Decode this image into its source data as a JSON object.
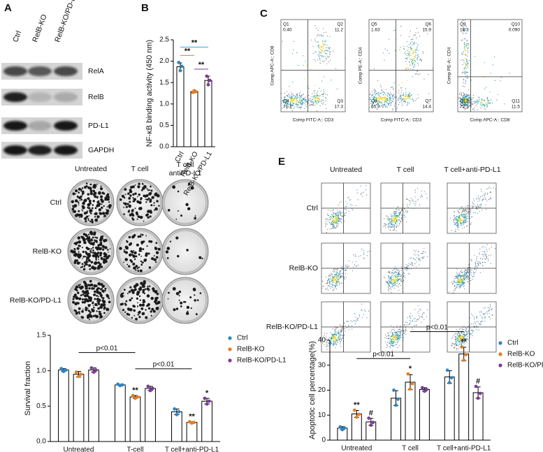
{
  "panels": {
    "A": {
      "label": "A",
      "columns": [
        "Ctrl",
        "RelB-KO",
        "RelB-KO/PD-L1"
      ],
      "rows": [
        "RelA",
        "RelB",
        "PD-L1",
        "GAPDH"
      ]
    },
    "C": {
      "label": "C",
      "plots": [
        {
          "y_label": "Comp APC-A:: CD8",
          "x_label": "Comp FITC-A:: CD3",
          "quadrants": [
            [
              "Q1",
              "0.40"
            ],
            [
              "Q2",
              "11.2"
            ],
            [
              "Q4",
              "71.1"
            ],
            [
              "Q3",
              "17.3"
            ]
          ]
        },
        {
          "y_label": "Comp PE-A:: CD4",
          "x_label": "Comp FITC-A:: CD3",
          "quadrants": [
            [
              "Q5",
              "1.63"
            ],
            [
              "Q6",
              "15.9"
            ],
            [
              "Q8",
              "65.9"
            ],
            [
              "Q7",
              "14.4"
            ]
          ]
        },
        {
          "y_label": "Comp PE-A:: CD4",
          "x_label": "Comp APC-A:: CD8",
          "quadrants": [
            [
              "Q9",
              "16.3"
            ],
            [
              "Q10",
              "0.090"
            ],
            [
              "Q12",
              "72.1"
            ],
            [
              "Q11",
              "11.5"
            ]
          ]
        }
      ]
    },
    "D": {
      "label": "D",
      "columns": [
        [
          "Untreated"
        ],
        [
          "T cell"
        ],
        [
          "T cell",
          "antiPD-L1"
        ]
      ],
      "rows": [
        "Ctrl",
        "RelB-KO",
        "RelB-KO/PD-L1"
      ]
    },
    "E": {
      "label": "E",
      "columns": [
        "Untreated",
        "T cell",
        "T cell+anti-PD-L1"
      ],
      "rows": [
        "Ctrl",
        "RelB-KO",
        "RelB-KO/PD-L1"
      ]
    }
  },
  "chart_data": [
    {
      "type": "bar",
      "panel_label": "B",
      "y_label": "NF-κB binding activity (450 nm)",
      "categories": [
        "Ctrl",
        "RelB-KO",
        "RelB-KO/PD-L1"
      ],
      "values": [
        1.87,
        1.29,
        1.55
      ],
      "errors": [
        0.09,
        0.03,
        0.1
      ],
      "points": [
        [
          1.97,
          1.78,
          1.88
        ],
        [
          1.27,
          1.31,
          1.29
        ],
        [
          1.65,
          1.45,
          1.55
        ]
      ],
      "point_colors": [
        "#2e86c1",
        "#e67e22",
        "#7d3c98"
      ],
      "bar_fill": "#ffffff",
      "ylim": [
        0,
        2.5
      ],
      "yticks": [
        {
          "value": 0,
          "label": "0.0"
        },
        0.5,
        {
          "value": 1,
          "label": "1.0"
        },
        1.5,
        {
          "value": 2,
          "label": "2.0"
        },
        2.5
      ],
      "x_labels_rotated": true,
      "brackets": [
        {
          "from": 1,
          "to": 2,
          "text": "**",
          "color": "#7d3c98"
        },
        {
          "from": 0,
          "to": 1,
          "text": "**",
          "color": "#e67e22"
        },
        {
          "from": 0,
          "to": 2,
          "text": "**",
          "color": "#29a9e0"
        }
      ]
    },
    {
      "type": "bar",
      "y_label": "Survival fraction",
      "categories": [
        "Untreated",
        "T-cell",
        "T cell+anti-PD-L1"
      ],
      "series": [
        {
          "name": "Ctrl",
          "color": "#2e86c1",
          "values": [
            1.01,
            0.8,
            0.42
          ],
          "errors": [
            0.02,
            0.01,
            0.04
          ],
          "points": [
            [
              1.03,
              0.99,
              1.01
            ],
            [
              0.81,
              0.79,
              0.8
            ],
            [
              0.46,
              0.38,
              0.42
            ]
          ]
        },
        {
          "name": "RelB-KO",
          "color": "#e67e22",
          "values": [
            0.95,
            0.63,
            0.27
          ],
          "errors": [
            0.04,
            0.02,
            0.01
          ],
          "points": [
            [
              0.98,
              0.92,
              0.95
            ],
            [
              0.65,
              0.61,
              0.63
            ],
            [
              0.28,
              0.26,
              0.27
            ]
          ]
        },
        {
          "name": "RelB-KO/PD-L1",
          "color": "#7d3c98",
          "values": [
            1.01,
            0.75,
            0.57
          ],
          "errors": [
            0.03,
            0.03,
            0.04
          ],
          "points": [
            [
              1.04,
              0.98,
              1.01
            ],
            [
              0.78,
              0.72,
              0.75
            ],
            [
              0.61,
              0.53,
              0.57
            ]
          ]
        }
      ],
      "bar_fill": "#ffffff",
      "ylim": [
        0,
        1.5
      ],
      "yticks": [
        {
          "value": 0,
          "label": "0.0"
        },
        0.5,
        {
          "value": 1,
          "label": "1.0"
        },
        1.5
      ],
      "legend": "right",
      "annotations": [
        {
          "series": 1,
          "index": 1,
          "text": "**",
          "color": "#c0392b"
        },
        {
          "series": 1,
          "index": 2,
          "text": "**",
          "color": "#c0392b"
        },
        {
          "series": 2,
          "index": 2,
          "text": "*",
          "color": "#8e44ad"
        }
      ],
      "brackets": [
        {
          "from": 0,
          "to": 1,
          "text": "p<0.01",
          "color": "#000000"
        },
        {
          "from": 1,
          "to": 2,
          "text": "p<0.01",
          "color": "#000000"
        }
      ]
    },
    {
      "type": "bar",
      "y_label": "Apoptotic cell percentage(%)",
      "categories": [
        "Untreated",
        "T cell",
        "T cell+anti-PD-L1"
      ],
      "series": [
        {
          "name": "Ctrl",
          "color": "#2e86c1",
          "values": [
            4.8,
            16.8,
            25.3
          ],
          "errors": [
            0.6,
            3,
            2.5
          ],
          "points": [
            [
              5.3,
              4.2,
              4.9
            ],
            [
              20,
              14,
              16.4
            ],
            [
              28,
              23,
              25
            ]
          ]
        },
        {
          "name": "RelB-KO",
          "color": "#e67e22",
          "values": [
            10.5,
            23.2,
            34.5
          ],
          "errors": [
            1.4,
            3,
            2.7
          ],
          "points": [
            [
              12,
              9.2,
              10.3
            ],
            [
              26.5,
              20.5,
              22.6
            ],
            [
              37.3,
              32,
              34.2
            ]
          ]
        },
        {
          "name": "RelB-KO/PD-L1",
          "color": "#7d3c98",
          "values": [
            7.3,
            20.3,
            19
          ],
          "errors": [
            1.4,
            0.7,
            2.3
          ],
          "points": [
            [
              8.8,
              6,
              7.1
            ],
            [
              21,
              19.6,
              20.3
            ],
            [
              21.5,
              16.8,
              18.7
            ]
          ]
        }
      ],
      "bar_fill": "#ffffff",
      "ylim": [
        0,
        40
      ],
      "yticks": [
        0,
        10,
        20,
        30,
        40
      ],
      "legend": "right",
      "annotations": [
        {
          "series": 1,
          "index": 0,
          "text": "**",
          "color": "#e67e22"
        },
        {
          "series": 2,
          "index": 0,
          "text": "#",
          "color": "#8e44ad"
        },
        {
          "series": 1,
          "index": 1,
          "text": "*",
          "color": "#e74c3c"
        },
        {
          "series": 1,
          "index": 2,
          "text": "**",
          "color": "#c0392b"
        },
        {
          "series": 2,
          "index": 2,
          "text": "#",
          "color": "#c0392b"
        }
      ],
      "brackets": [
        {
          "from": 0,
          "to": 1,
          "text": "p<0.01",
          "color": "#000000"
        },
        {
          "from": 1,
          "to": 2,
          "text": "p<0.01",
          "color": "#000000"
        }
      ]
    }
  ]
}
